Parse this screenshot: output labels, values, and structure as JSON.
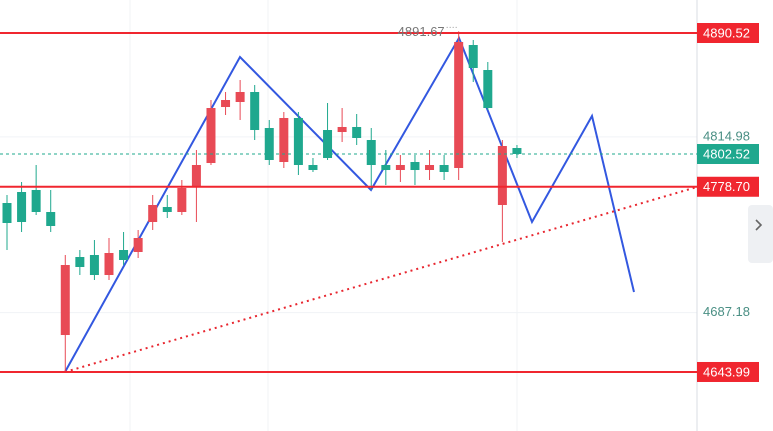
{
  "chart_data": {
    "type": "candlestick",
    "categories": [
      null,
      null,
      null,
      null,
      null,
      null,
      null,
      null,
      null,
      null,
      null,
      null,
      null,
      null,
      null,
      null,
      null,
      null,
      null,
      null,
      null,
      null,
      null,
      null,
      null,
      null,
      null,
      null,
      null,
      null,
      null,
      null,
      null,
      null,
      null,
      null
    ],
    "open": [
      4766.88,
      4774.88,
      4776.34,
      4760.34,
      4670.88,
      4727.61,
      4729.07,
      4714.52,
      4732.7,
      4731.25,
      4753.07,
      4763.97,
      4760.34,
      4778.52,
      4795.97,
      4836.7,
      4840.34,
      4847.61,
      4821.43,
      4796.7,
      4828.7,
      4794.52,
      4819.97,
      4818.52,
      4822.16,
      4812.7,
      4794.52,
      4790.88,
      4796.7,
      4790.88,
      4794.52,
      4792.34,
      4881.79,
      4863.61,
      4765.43,
      4806.88
    ],
    "high": [
      4772.7,
      4782.16,
      4794.52,
      4776.34,
      4729.07,
      4732.7,
      4739.97,
      4741.43,
      4745.79,
      4747.25,
      4772.7,
      4772.7,
      4783.61,
      4805.43,
      4841.79,
      4847.61,
      4856.34,
      4852.7,
      4827.25,
      4833.07,
      4833.07,
      4799.61,
      4839.61,
      4835.97,
      4831.61,
      4821.43,
      4805.43,
      4801.79,
      4801.79,
      4805.43,
      4801.79,
      4891.67,
      4885.43,
      4869.43,
      4812.7,
      4809.07
    ],
    "low": [
      4732.7,
      4745.79,
      4758.16,
      4745.79,
      4643.99,
      4714.52,
      4710.88,
      4710.88,
      4721.79,
      4726.88,
      4747.25,
      4755.97,
      4758.16,
      4753.07,
      4794.52,
      4830.88,
      4827.25,
      4812.7,
      4794.52,
      4792.34,
      4787.25,
      4789.43,
      4798.16,
      4811.25,
      4809.07,
      4776.34,
      4779.97,
      4782.16,
      4779.97,
      4783.61,
      4783.61,
      4783.61,
      4854.88,
      4834.52,
      4738.52,
      4799.61
    ],
    "close": [
      4752.34,
      4753.07,
      4760.34,
      4750.16,
      4721.79,
      4720.34,
      4714.52,
      4730.52,
      4725.43,
      4741.43,
      4765.43,
      4760.34,
      4777.79,
      4794.52,
      4835.97,
      4841.79,
      4847.61,
      4819.97,
      4798.16,
      4828.7,
      4794.52,
      4790.88,
      4799.61,
      4822.16,
      4814.16,
      4794.52,
      4790.88,
      4794.52,
      4790.88,
      4794.52,
      4789.43,
      4883.97,
      4865.07,
      4835.97,
      4808.34,
      4802.52
    ],
    "up_color": "#e84a55",
    "down_color": "#1fa88e",
    "levels": [
      4890.52,
      {
        "value": 4778.7,
        "label": "4778.70"
      },
      4643.99
    ],
    "level_color": "#f0262f",
    "ylim": [
      4601.07,
      4914.52
    ],
    "yticks": [
      4814.98,
      4687.18
    ],
    "grid": true
  }
}
